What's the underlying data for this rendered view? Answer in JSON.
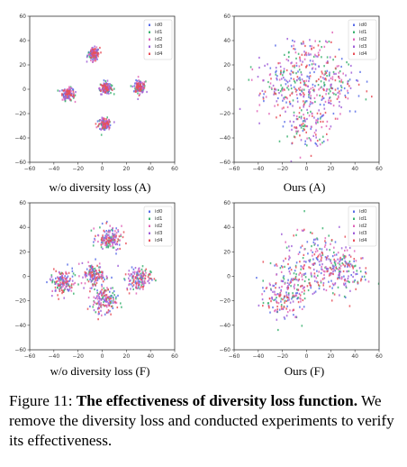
{
  "caption": {
    "prefix": "Figure 11: ",
    "bold": "The effectiveness of diversity loss function.",
    "rest": " We remove the diversity loss and conducted experiments to verify its effectiveness."
  },
  "series_colors": [
    "#5b6ee8",
    "#3cb371",
    "#e066b8",
    "#a060d8",
    "#e8505a"
  ],
  "chart_data": [
    {
      "type": "scatter",
      "title": "w/o diversity loss (A)",
      "xlim": [
        -60,
        60
      ],
      "ylim": [
        -60,
        60
      ],
      "xticks": [
        -60,
        -40,
        -20,
        0,
        20,
        40,
        60
      ],
      "yticks": [
        -60,
        -40,
        -20,
        0,
        20,
        40,
        60
      ],
      "grid": false,
      "legend": "top-right",
      "series": [
        {
          "name": "id0",
          "clusters": [
            [
              -7,
              29,
              2.5
            ],
            [
              -28,
              -4,
              2.5
            ],
            [
              3,
              1,
              2.5
            ],
            [
              31,
              2,
              2.5
            ],
            [
              2,
              -29,
              2.5
            ]
          ]
        },
        {
          "name": "id1",
          "clusters": [
            [
              -7,
              29,
              2.5
            ],
            [
              -28,
              -4,
              2.5
            ],
            [
              3,
              1,
              2.5
            ],
            [
              31,
              2,
              2.5
            ],
            [
              2,
              -29,
              2.5
            ]
          ]
        },
        {
          "name": "id2",
          "clusters": [
            [
              -7,
              29,
              2.5
            ],
            [
              -28,
              -4,
              2.5
            ],
            [
              3,
              1,
              2.5
            ],
            [
              31,
              2,
              2.5
            ],
            [
              2,
              -29,
              2.5
            ]
          ]
        },
        {
          "name": "id3",
          "clusters": [
            [
              -7,
              29,
              2.5
            ],
            [
              -28,
              -4,
              2.5
            ],
            [
              3,
              1,
              2.5
            ],
            [
              31,
              2,
              2.5
            ],
            [
              2,
              -29,
              2.5
            ]
          ]
        },
        {
          "name": "id4",
          "clusters": [
            [
              -7,
              29,
              2.5
            ],
            [
              -28,
              -4,
              2.5
            ],
            [
              3,
              1,
              2.5
            ],
            [
              31,
              2,
              2.5
            ],
            [
              2,
              -29,
              2.5
            ]
          ]
        }
      ]
    },
    {
      "type": "scatter",
      "title": "Ours (A)",
      "xlim": [
        -60,
        60
      ],
      "ylim": [
        -60,
        60
      ],
      "xticks": [
        -60,
        -40,
        -20,
        0,
        20,
        40,
        60
      ],
      "yticks": [
        -60,
        -40,
        -20,
        0,
        20,
        40,
        60
      ],
      "grid": false,
      "legend": "top-right",
      "series": [
        {
          "name": "id0",
          "clusters": [
            [
              3,
              24,
              11
            ],
            [
              -24,
              3,
              11
            ],
            [
              1,
              -3,
              10
            ],
            [
              24,
              2,
              11
            ],
            [
              0,
              -30,
              10
            ]
          ]
        },
        {
          "name": "id1",
          "clusters": [
            [
              3,
              24,
              11
            ],
            [
              -24,
              3,
              11
            ],
            [
              1,
              -3,
              10
            ],
            [
              24,
              2,
              11
            ],
            [
              0,
              -30,
              10
            ]
          ]
        },
        {
          "name": "id2",
          "clusters": [
            [
              3,
              24,
              11
            ],
            [
              -24,
              3,
              11
            ],
            [
              1,
              -3,
              10
            ],
            [
              24,
              2,
              11
            ],
            [
              0,
              -30,
              10
            ]
          ]
        },
        {
          "name": "id3",
          "clusters": [
            [
              3,
              24,
              11
            ],
            [
              -24,
              3,
              11
            ],
            [
              1,
              -3,
              10
            ],
            [
              24,
              2,
              11
            ],
            [
              0,
              -30,
              10
            ]
          ]
        },
        {
          "name": "id4",
          "clusters": [
            [
              3,
              24,
              11
            ],
            [
              -24,
              3,
              11
            ],
            [
              1,
              -3,
              10
            ],
            [
              24,
              2,
              11
            ],
            [
              0,
              -30,
              10
            ]
          ]
        }
      ]
    },
    {
      "type": "scatter",
      "title": "w/o diversity loss (F)",
      "xlim": [
        -60,
        60
      ],
      "ylim": [
        -60,
        60
      ],
      "xticks": [
        -60,
        -40,
        -20,
        0,
        20,
        40,
        60
      ],
      "yticks": [
        -60,
        -40,
        -20,
        0,
        20,
        40,
        60
      ],
      "grid": false,
      "legend": "top-right",
      "series": [
        {
          "name": "id0",
          "clusters": [
            [
              6,
              31,
              5
            ],
            [
              -33,
              -5,
              5
            ],
            [
              -7,
              1,
              5
            ],
            [
              30,
              -2,
              5
            ],
            [
              2,
              -20,
              5
            ]
          ]
        },
        {
          "name": "id1",
          "clusters": [
            [
              6,
              31,
              5
            ],
            [
              -33,
              -5,
              5
            ],
            [
              -7,
              1,
              5
            ],
            [
              30,
              -2,
              5
            ],
            [
              2,
              -20,
              5
            ]
          ]
        },
        {
          "name": "id2",
          "clusters": [
            [
              6,
              31,
              5
            ],
            [
              -33,
              -5,
              5
            ],
            [
              -7,
              1,
              5
            ],
            [
              30,
              -2,
              5
            ],
            [
              2,
              -20,
              5
            ]
          ]
        },
        {
          "name": "id3",
          "clusters": [
            [
              6,
              31,
              5
            ],
            [
              -33,
              -5,
              5
            ],
            [
              -7,
              1,
              5
            ],
            [
              30,
              -2,
              5
            ],
            [
              2,
              -20,
              5
            ]
          ]
        },
        {
          "name": "id4",
          "clusters": [
            [
              6,
              31,
              5
            ],
            [
              -33,
              -5,
              5
            ],
            [
              -7,
              1,
              5
            ],
            [
              30,
              -2,
              5
            ],
            [
              2,
              -20,
              5
            ]
          ]
        }
      ]
    },
    {
      "type": "scatter",
      "title": "Ours (F)",
      "xlim": [
        -60,
        60
      ],
      "ylim": [
        -60,
        60
      ],
      "xticks": [
        -60,
        -40,
        -20,
        0,
        20,
        40,
        60
      ],
      "yticks": [
        -60,
        -40,
        -20,
        0,
        20,
        40,
        60
      ],
      "grid": false,
      "legend": "top-right",
      "series": [
        {
          "name": "id0",
          "clusters": [
            [
              20,
              14,
              11
            ],
            [
              5,
              10,
              13
            ],
            [
              -12,
              -5,
              12
            ],
            [
              -22,
              -20,
              8
            ],
            [
              30,
              3,
              9
            ]
          ]
        },
        {
          "name": "id1",
          "clusters": [
            [
              20,
              14,
              11
            ],
            [
              5,
              10,
              13
            ],
            [
              -12,
              -5,
              12
            ],
            [
              -22,
              -20,
              8
            ],
            [
              30,
              3,
              9
            ]
          ]
        },
        {
          "name": "id2",
          "clusters": [
            [
              20,
              14,
              11
            ],
            [
              5,
              10,
              13
            ],
            [
              -12,
              -5,
              12
            ],
            [
              -22,
              -20,
              8
            ],
            [
              30,
              3,
              9
            ]
          ]
        },
        {
          "name": "id3",
          "clusters": [
            [
              20,
              14,
              11
            ],
            [
              5,
              10,
              13
            ],
            [
              -12,
              -5,
              12
            ],
            [
              -22,
              -20,
              8
            ],
            [
              30,
              3,
              9
            ]
          ]
        },
        {
          "name": "id4",
          "clusters": [
            [
              20,
              14,
              11
            ],
            [
              5,
              10,
              13
            ],
            [
              -12,
              -5,
              12
            ],
            [
              -22,
              -20,
              8
            ],
            [
              30,
              3,
              9
            ]
          ]
        }
      ]
    }
  ]
}
